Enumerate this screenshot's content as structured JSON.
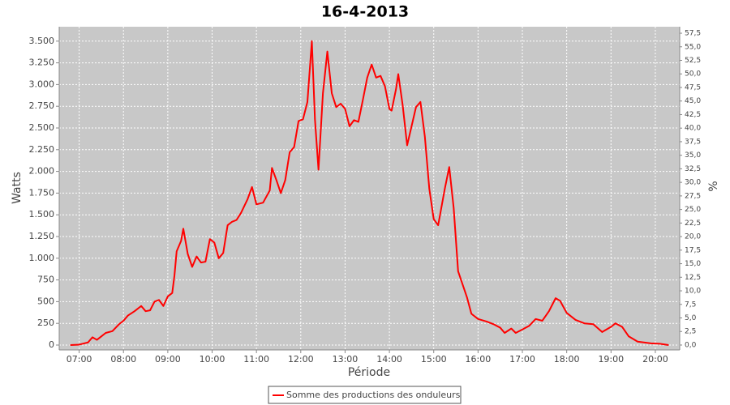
{
  "chart_data": {
    "type": "line",
    "title": "16-4-2013",
    "x_label": "Période",
    "y_label": "Watts",
    "y2_label": "%",
    "grid": true,
    "x": [
      6.8,
      7.0,
      7.2,
      7.3,
      7.4,
      7.5,
      7.6,
      7.75,
      7.9,
      8.0,
      8.1,
      8.25,
      8.4,
      8.5,
      8.6,
      8.7,
      8.8,
      8.9,
      9.0,
      9.1,
      9.15,
      9.2,
      9.3,
      9.35,
      9.45,
      9.55,
      9.65,
      9.75,
      9.85,
      9.95,
      10.05,
      10.15,
      10.25,
      10.35,
      10.45,
      10.55,
      10.65,
      10.8,
      10.9,
      11.0,
      11.15,
      11.3,
      11.35,
      11.45,
      11.55,
      11.65,
      11.75,
      11.85,
      11.95,
      12.05,
      12.15,
      12.25,
      12.32,
      12.4,
      12.5,
      12.6,
      12.7,
      12.8,
      12.9,
      13.0,
      13.1,
      13.2,
      13.3,
      13.4,
      13.5,
      13.6,
      13.7,
      13.8,
      13.9,
      14.0,
      14.05,
      14.15,
      14.2,
      14.3,
      14.4,
      14.5,
      14.6,
      14.7,
      14.8,
      14.9,
      15.0,
      15.1,
      15.25,
      15.35,
      15.45,
      15.55,
      15.65,
      15.75,
      15.85,
      16.0,
      16.2,
      16.35,
      16.5,
      16.6,
      16.75,
      16.85,
      17.0,
      17.15,
      17.3,
      17.45,
      17.6,
      17.75,
      17.85,
      18.0,
      18.2,
      18.4,
      18.6,
      18.8,
      19.0,
      19.1,
      19.25,
      19.4,
      19.6,
      19.9,
      20.1,
      20.3
    ],
    "series": [
      {
        "name": "Somme des productions des onduleurs",
        "color": "#ff0000",
        "values": [
          0,
          5,
          30,
          90,
          60,
          100,
          140,
          160,
          240,
          280,
          340,
          390,
          450,
          390,
          400,
          500,
          520,
          450,
          560,
          600,
          800,
          1080,
          1200,
          1340,
          1050,
          900,
          1020,
          950,
          960,
          1220,
          1180,
          1000,
          1060,
          1380,
          1420,
          1440,
          1520,
          1680,
          1820,
          1620,
          1640,
          1780,
          2040,
          1900,
          1750,
          1900,
          2220,
          2280,
          2580,
          2600,
          2800,
          3500,
          2600,
          2020,
          2900,
          3380,
          2900,
          2740,
          2780,
          2720,
          2520,
          2590,
          2570,
          2820,
          3080,
          3230,
          3080,
          3100,
          2980,
          2720,
          2700,
          2950,
          3120,
          2760,
          2300,
          2520,
          2740,
          2800,
          2400,
          1800,
          1450,
          1380,
          1800,
          2050,
          1580,
          850,
          700,
          550,
          360,
          300,
          270,
          240,
          200,
          140,
          190,
          140,
          180,
          220,
          300,
          280,
          390,
          540,
          510,
          370,
          290,
          250,
          240,
          150,
          210,
          250,
          210,
          100,
          40,
          20,
          15,
          0
        ]
      }
    ],
    "xlim": [
      6.55,
      20.55
    ],
    "xticks": [
      {
        "value": 7,
        "label": "07:00"
      },
      {
        "value": 8,
        "label": "08:00"
      },
      {
        "value": 9,
        "label": "09:00"
      },
      {
        "value": 10,
        "label": "10:00"
      },
      {
        "value": 11,
        "label": "11:00"
      },
      {
        "value": 12,
        "label": "12:00"
      },
      {
        "value": 13,
        "label": "13:00"
      },
      {
        "value": 14,
        "label": "14:00"
      },
      {
        "value": 15,
        "label": "15:00"
      },
      {
        "value": 16,
        "label": "16:00"
      },
      {
        "value": 17,
        "label": "17:00"
      },
      {
        "value": 18,
        "label": "18:00"
      },
      {
        "value": 19,
        "label": "19:00"
      },
      {
        "value": 20,
        "label": "20:00"
      }
    ],
    "ylim": [
      -56,
      3666
    ],
    "yticks": [
      0,
      250,
      500,
      750,
      {
        "value": 1000,
        "label": "1.000"
      },
      {
        "value": 1250,
        "label": "1.250"
      },
      {
        "value": 1500,
        "label": "1.500"
      },
      {
        "value": 1750,
        "label": "1.750"
      },
      {
        "value": 2000,
        "label": "2.000"
      },
      {
        "value": 2250,
        "label": "2.250"
      },
      {
        "value": 2500,
        "label": "2.500"
      },
      {
        "value": 2750,
        "label": "2.750"
      },
      {
        "value": 3000,
        "label": "3.000"
      },
      {
        "value": 3250,
        "label": "3.250"
      },
      {
        "value": 3500,
        "label": "3.500"
      }
    ],
    "y2lim": [
      -0.9,
      58.7
    ],
    "y2ticks": [
      {
        "value": 0,
        "label": "0,0"
      },
      {
        "value": 2.5,
        "label": "2,5"
      },
      {
        "value": 5,
        "label": "5,0"
      },
      {
        "value": 7.5,
        "label": "7,5"
      },
      {
        "value": 10,
        "label": "10,0"
      },
      {
        "value": 12.5,
        "label": "12,5"
      },
      {
        "value": 15,
        "label": "15,0"
      },
      {
        "value": 17.5,
        "label": "17,5"
      },
      {
        "value": 20,
        "label": "20,0"
      },
      {
        "value": 22.5,
        "label": "22,5"
      },
      {
        "value": 25,
        "label": "25,0"
      },
      {
        "value": 27.5,
        "label": "27,5"
      },
      {
        "value": 30,
        "label": "30,0"
      },
      {
        "value": 32.5,
        "label": "32,5"
      },
      {
        "value": 35,
        "label": "35,0"
      },
      {
        "value": 37.5,
        "label": "37,5"
      },
      {
        "value": 40,
        "label": "40,0"
      },
      {
        "value": 42.5,
        "label": "42,5"
      },
      {
        "value": 45,
        "label": "45,0"
      },
      {
        "value": 47.5,
        "label": "47,5"
      },
      {
        "value": 50,
        "label": "50,0"
      },
      {
        "value": 52.5,
        "label": "52,5"
      },
      {
        "value": 55,
        "label": "55,0"
      },
      {
        "value": 57.5,
        "label": "57,5"
      }
    ]
  }
}
